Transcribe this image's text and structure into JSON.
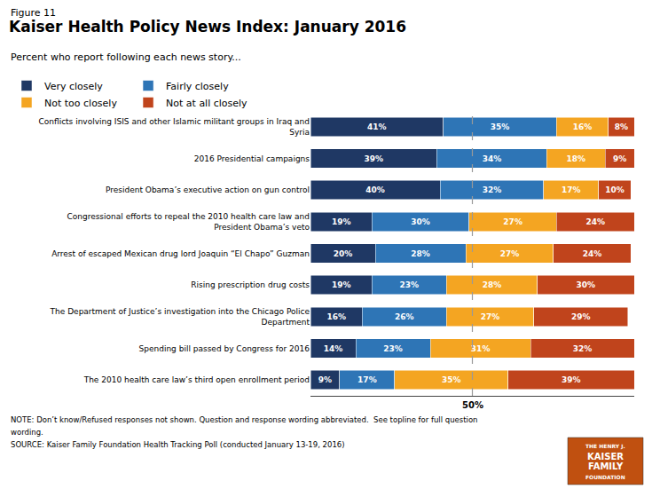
{
  "chart_data": {
    "type": "bar",
    "orientation": "horizontal",
    "stacked": true,
    "data_labels": true,
    "tick_labels": "y",
    "grid": false,
    "legend": "top",
    "figure_label": "Figure 11",
    "title": "Kaiser Health Policy News Index: January 2016",
    "subtitle": "Percent who report following each news story...",
    "categories": [
      "Conflicts involving ISIS and other Islamic militant groups in Iraq and\nSyria",
      "2016 Presidential campaigns",
      "President Obama’s executive action on gun control",
      "Congressional efforts to repeal the 2010 health care law and\nPresident Obama’s veto",
      "Arrest of escaped Mexican drug lord Joaquin “El Chapo” Guzman",
      "Rising prescription drug costs",
      "The Department of Justice’s investigation into the Chicago Police\nDepartment",
      "Spending bill passed by Congress for 2016",
      "The 2010 health care law’s third open enrollment period"
    ],
    "series": [
      {
        "name": "Very closely",
        "color": "#1F3864",
        "values": [
          41,
          39,
          40,
          19,
          20,
          19,
          16,
          14,
          9
        ],
        "value_labels": [
          "41%",
          "39%",
          "40%",
          "19%",
          "20%",
          "19%",
          "16%",
          "14%",
          "9%"
        ]
      },
      {
        "name": "Fairly closely",
        "color": "#2E75B6",
        "values": [
          35,
          34,
          32,
          30,
          28,
          23,
          26,
          23,
          17
        ],
        "value_labels": [
          "35%",
          "34%",
          "32%",
          "30%",
          "28%",
          "23%",
          "26%",
          "23%",
          "17%"
        ]
      },
      {
        "name": "Not too closely",
        "color": "#F4A522",
        "values": [
          16,
          18,
          17,
          27,
          27,
          28,
          27,
          31,
          35
        ],
        "value_labels": [
          "16%",
          "18%",
          "17%",
          "27%",
          "27%",
          "28%",
          "27%",
          "31%",
          "35%"
        ]
      },
      {
        "name": "Not at all closely",
        "color": "#C0441C",
        "values": [
          8,
          9,
          10,
          24,
          24,
          30,
          29,
          32,
          39
        ],
        "value_labels": [
          "8%",
          "9%",
          "10%",
          "24%",
          "24%",
          "30%",
          "29%",
          "32%",
          "39%"
        ]
      }
    ],
    "xlim": [
      0,
      100
    ],
    "annotations": [
      {
        "x": 50,
        "text": "50%"
      }
    ],
    "notes": [
      "NOTE: Don’t know/Refused responses not shown. Question and response wording abbreviated.  See topline for full question",
      "wording.",
      "SOURCE: Kaiser Family Foundation Health Tracking Poll (conducted January 13-19, 2016)"
    ],
    "logo": [
      "THE HENRY J.",
      "KAISER",
      "FAMILY",
      "FOUNDATION"
    ]
  }
}
